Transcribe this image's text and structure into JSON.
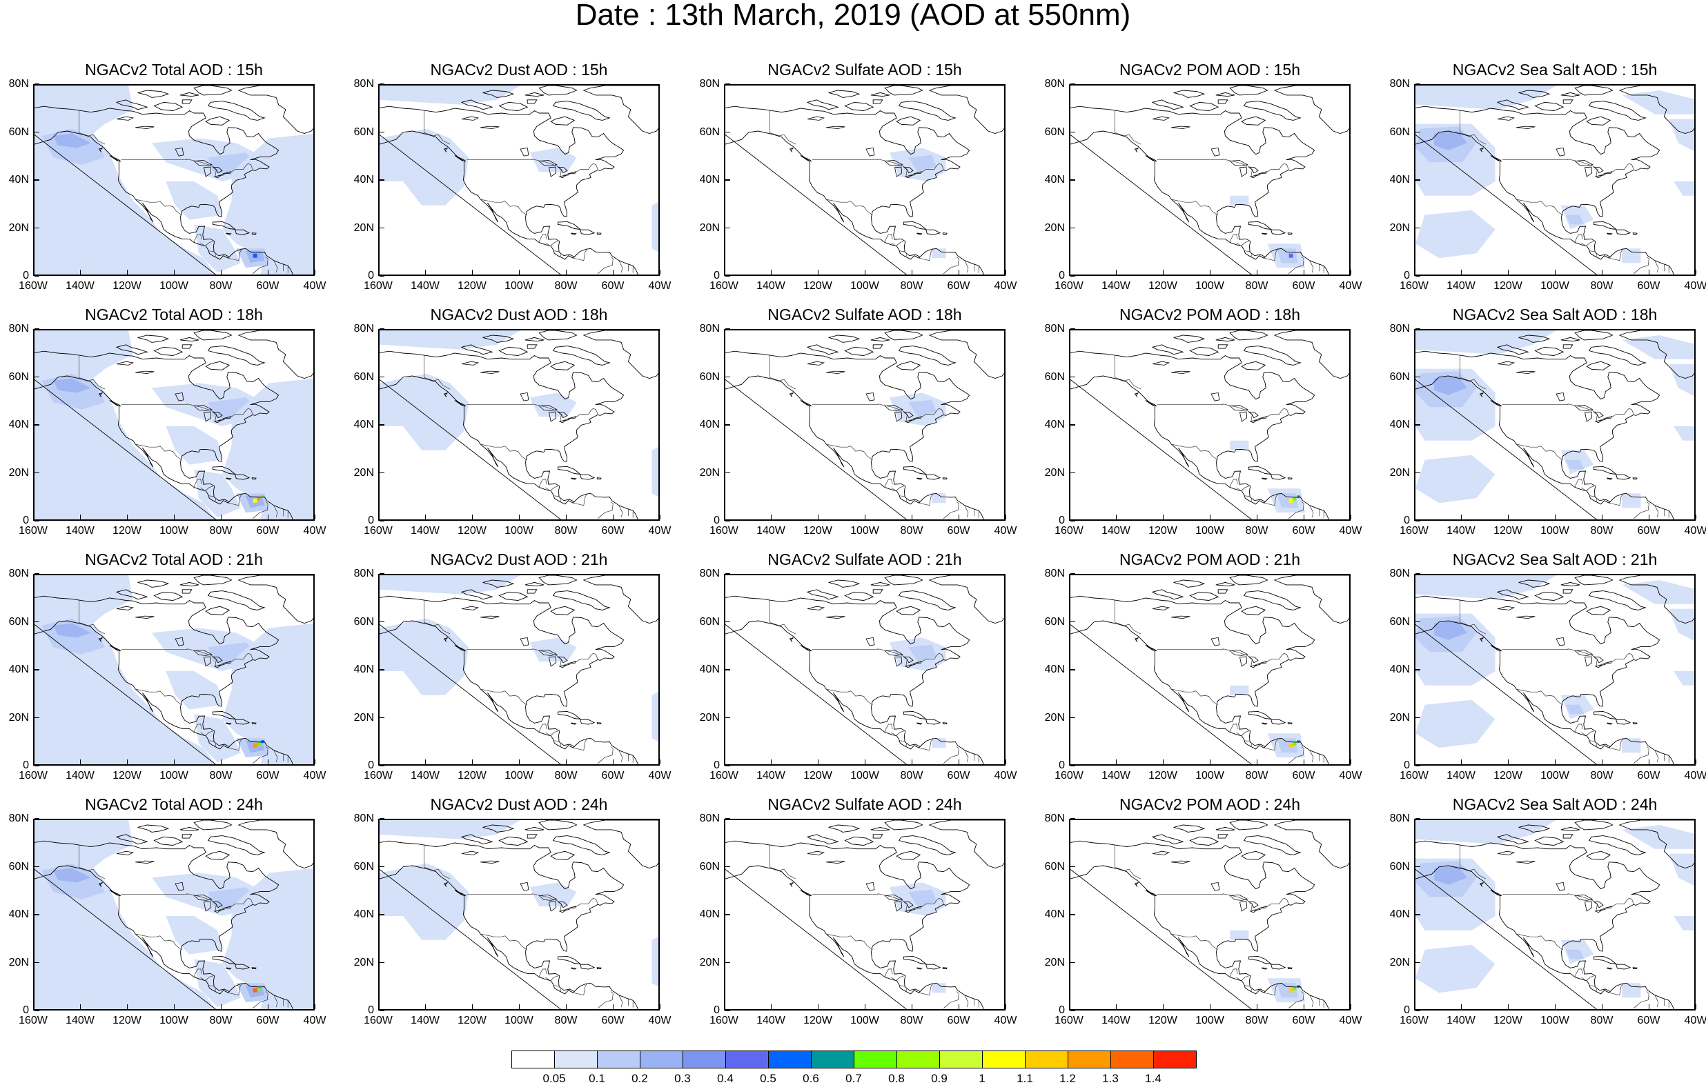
{
  "title": "Date : 13th March, 2019 (AOD at 550nm)",
  "columns": [
    {
      "species": "total",
      "titles": [
        "NGACv2 Total AOD : 15h",
        "NGACv2 Total AOD : 18h",
        "NGACv2 Total AOD : 21h",
        "NGACv2 Total AOD : 24h"
      ]
    },
    {
      "species": "dust",
      "titles": [
        "NGACv2 Dust AOD : 15h",
        "NGACv2 Dust AOD : 18h",
        "NGACv2 Dust AOD : 21h",
        "NGACv2 Dust AOD : 24h"
      ]
    },
    {
      "species": "sulfate",
      "titles": [
        "NGACv2 Sulfate AOD : 15h",
        "NGACv2 Sulfate AOD : 18h",
        "NGACv2 Sulfate AOD : 21h",
        "NGACv2 Sulfate AOD : 24h"
      ]
    },
    {
      "species": "pom",
      "titles": [
        "NGACv2 POM AOD : 15h",
        "NGACv2 POM AOD : 18h",
        "NGACv2 POM AOD : 21h",
        "NGACv2 POM AOD : 24h"
      ]
    },
    {
      "species": "seasalt",
      "titles": [
        "NGACv2 Sea Salt AOD : 15h",
        "NGACv2 Sea Salt AOD : 18h",
        "NGACv2 Sea Salt AOD : 21h",
        "NGACv2 Sea Salt  AOD : 24h"
      ]
    }
  ],
  "x_tick_labels": [
    "160W",
    "140W",
    "120W",
    "100W",
    "80W",
    "60W",
    "40W"
  ],
  "y_tick_labels": [
    "0",
    "20N",
    "40N",
    "60N",
    "80N"
  ],
  "colorbar": {
    "labels": [
      "0.05",
      "0.1",
      "0.2",
      "0.3",
      "0.4",
      "0.5",
      "0.6",
      "0.7",
      "0.8",
      "0.9",
      "1",
      "1.1",
      "1.2",
      "1.3",
      "1.4"
    ],
    "colors": [
      "#ffffff",
      "#dce6fb",
      "#b9cbf7",
      "#98b2f5",
      "#7c94f2",
      "#5f69f0",
      "#0066ff",
      "#009999",
      "#66ff00",
      "#99ff00",
      "#ccff33",
      "#ffff00",
      "#ffcc00",
      "#ff9900",
      "#ff6600",
      "#ff2200"
    ]
  }
}
